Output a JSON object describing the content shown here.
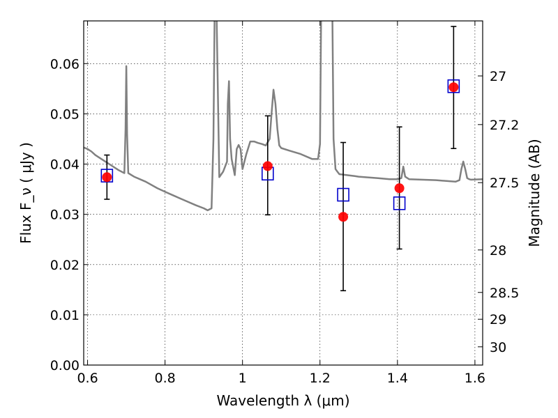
{
  "chart_data": {
    "type": "scatter",
    "xlabel": "Wavelength  λ (μm)",
    "ylabel": "Flux  F_ν ( μJy )",
    "ylabel_right": "Magnitude (AB)",
    "xlim": [
      0.59,
      1.62
    ],
    "ylim": [
      0.0,
      0.0685
    ],
    "x_ticks": [
      0.6,
      0.8,
      1.0,
      1.2,
      1.4,
      1.6
    ],
    "x_tick_labels": [
      "0.6",
      "0.8",
      "1",
      "1.2",
      "1.4",
      "1.6"
    ],
    "y_ticks": [
      0.0,
      0.01,
      0.02,
      0.03,
      0.04,
      0.05,
      0.06
    ],
    "y_tick_labels": [
      "0.00",
      "0.01",
      "0.02",
      "0.03",
      "0.04",
      "0.05",
      "0.06"
    ],
    "right_ticks": [
      27,
      27.2,
      27.5,
      28,
      28.5,
      29,
      30
    ],
    "right_tick_labels": [
      "27",
      "27.2",
      "27.5",
      "28",
      "28.5",
      "29",
      "30"
    ],
    "grid": true,
    "colors": {
      "model": "#808080",
      "observed": "#ff0000",
      "model_photometry": "#0000cc",
      "errorbar": "#000000"
    },
    "series": [
      {
        "kind": "line",
        "x": [
          0.585,
          0.59,
          0.6,
          0.61,
          0.62,
          0.64,
          0.66,
          0.68,
          0.695,
          0.698,
          0.7,
          0.702,
          0.705,
          0.72,
          0.75,
          0.78,
          0.8,
          0.82,
          0.85,
          0.88,
          0.9,
          0.91,
          0.92,
          0.925,
          0.928,
          0.93,
          0.933,
          0.94,
          0.95,
          0.96,
          0.962,
          0.965,
          0.968,
          0.972,
          0.98,
          0.985,
          0.99,
          0.995,
          1.0,
          1.01,
          1.02,
          1.03,
          1.04,
          1.05,
          1.06,
          1.07,
          1.075,
          1.08,
          1.085,
          1.09,
          1.095,
          1.1,
          1.12,
          1.15,
          1.18,
          1.195,
          1.2,
          1.203,
          1.205,
          1.21,
          1.22,
          1.225,
          1.23,
          1.232,
          1.235,
          1.24,
          1.245,
          1.25,
          1.27,
          1.29,
          1.3,
          1.35,
          1.38,
          1.4,
          1.41,
          1.415,
          1.42,
          1.43,
          1.5,
          1.55,
          1.56,
          1.565,
          1.57,
          1.575,
          1.58,
          1.585,
          1.59,
          1.62
        ],
        "y": [
          0.0432,
          0.0433,
          0.043,
          0.0425,
          0.0418,
          0.0408,
          0.0398,
          0.0388,
          0.0382,
          0.047,
          0.0595,
          0.046,
          0.0382,
          0.0375,
          0.0365,
          0.0352,
          0.0345,
          0.0338,
          0.0328,
          0.0318,
          0.0312,
          0.0308,
          0.0312,
          0.045,
          0.07,
          0.07,
          0.07,
          0.0374,
          0.0385,
          0.0405,
          0.052,
          0.0565,
          0.045,
          0.041,
          0.0378,
          0.043,
          0.0438,
          0.043,
          0.039,
          0.042,
          0.0445,
          0.0445,
          0.0442,
          0.044,
          0.0437,
          0.045,
          0.05,
          0.0548,
          0.052,
          0.047,
          0.0437,
          0.0432,
          0.0427,
          0.042,
          0.041,
          0.041,
          0.044,
          0.07,
          0.07,
          0.07,
          0.07,
          0.07,
          0.07,
          0.07,
          0.045,
          0.039,
          0.0385,
          0.038,
          0.0378,
          0.0376,
          0.0375,
          0.0372,
          0.037,
          0.037,
          0.0372,
          0.0395,
          0.0375,
          0.037,
          0.0368,
          0.0365,
          0.0368,
          0.039,
          0.0405,
          0.039,
          0.0372,
          0.037,
          0.0369,
          0.037
        ]
      },
      {
        "kind": "points",
        "x": [
          0.65,
          1.065,
          1.26,
          1.405,
          1.545
        ],
        "y": [
          0.0374,
          0.0396,
          0.0295,
          0.0352,
          0.0553
        ],
        "yerr_low": [
          0.033,
          0.0299,
          0.0148,
          0.0231,
          0.0431
        ],
        "yerr_high": [
          0.0418,
          0.0496,
          0.0443,
          0.0474,
          0.0674
        ]
      },
      {
        "kind": "squares",
        "x": [
          0.65,
          1.065,
          1.26,
          1.405,
          1.545
        ],
        "y": [
          0.0377,
          0.0381,
          0.0339,
          0.0322,
          0.0555
        ]
      }
    ]
  }
}
